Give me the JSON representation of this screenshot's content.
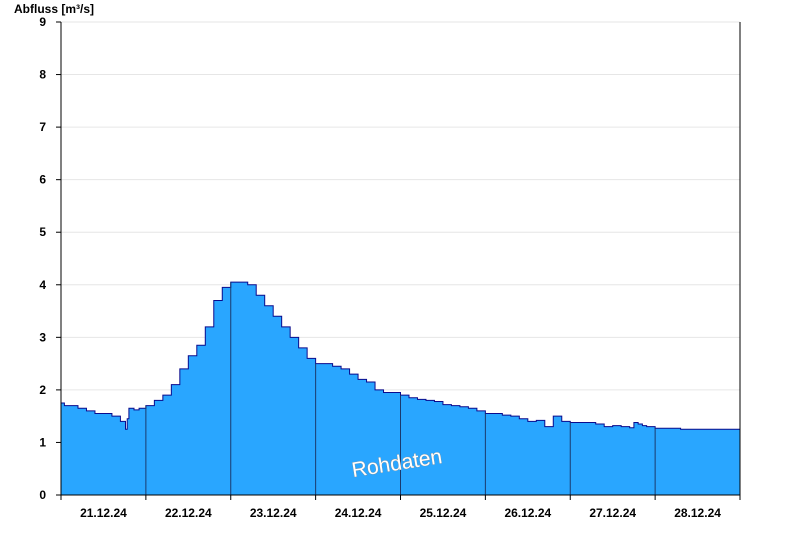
{
  "chart_data": {
    "type": "area",
    "title": "",
    "ylabel": "Abfluss [m³/s]",
    "xlabel": "",
    "ylim": [
      0,
      9
    ],
    "yticks": [
      0,
      1,
      2,
      3,
      4,
      5,
      6,
      7,
      8,
      9
    ],
    "xlim": [
      0,
      8
    ],
    "day_labels": [
      "21.12.24",
      "22.12.24",
      "23.12.24",
      "24.12.24",
      "25.12.24",
      "26.12.24",
      "27.12.24",
      "28.12.24"
    ],
    "grid": true,
    "watermark": "Rohdaten",
    "fill_color": "#29a6ff",
    "line_color": "#0a0a8c",
    "series": [
      {
        "x": [
          0,
          0.04,
          0.2,
          0.3,
          0.4,
          0.6,
          0.7,
          0.76,
          0.78,
          0.8,
          0.84,
          0.86,
          0.92,
          1.0,
          1.1,
          1.2,
          1.3,
          1.4,
          1.5,
          1.6,
          1.7,
          1.8,
          1.9,
          2.0,
          2.1,
          2.2,
          2.3,
          2.4,
          2.5,
          2.6,
          2.7,
          2.8,
          2.9,
          3.0,
          3.1,
          3.2,
          3.3,
          3.4,
          3.5,
          3.6,
          3.7,
          3.8,
          4.0,
          4.1,
          4.2,
          4.3,
          4.4,
          4.5,
          4.6,
          4.7,
          4.8,
          4.9,
          5.0,
          5.2,
          5.3,
          5.4,
          5.5,
          5.6,
          5.7,
          5.8,
          5.9,
          6.0,
          6.3,
          6.4,
          6.5,
          6.6,
          6.7,
          6.75,
          6.8,
          6.85,
          6.9,
          7.0,
          7.1,
          7.3,
          7.5,
          7.6,
          7.7,
          7.8,
          8.0
        ],
        "y": [
          1.75,
          1.7,
          1.65,
          1.6,
          1.55,
          1.5,
          1.4,
          1.25,
          1.45,
          1.65,
          1.65,
          1.62,
          1.65,
          1.7,
          1.8,
          1.9,
          2.1,
          2.4,
          2.65,
          2.85,
          3.2,
          3.7,
          3.95,
          4.05,
          4.05,
          4.0,
          3.8,
          3.6,
          3.4,
          3.2,
          3.0,
          2.8,
          2.6,
          2.5,
          2.5,
          2.45,
          2.4,
          2.3,
          2.2,
          2.15,
          2.0,
          1.95,
          1.9,
          1.85,
          1.82,
          1.8,
          1.78,
          1.72,
          1.7,
          1.68,
          1.65,
          1.6,
          1.55,
          1.52,
          1.5,
          1.45,
          1.4,
          1.42,
          1.3,
          1.5,
          1.4,
          1.38,
          1.35,
          1.3,
          1.32,
          1.3,
          1.28,
          1.38,
          1.35,
          1.32,
          1.3,
          1.27,
          1.27,
          1.25,
          1.25,
          1.25,
          1.25,
          1.25,
          1.25
        ]
      }
    ]
  }
}
